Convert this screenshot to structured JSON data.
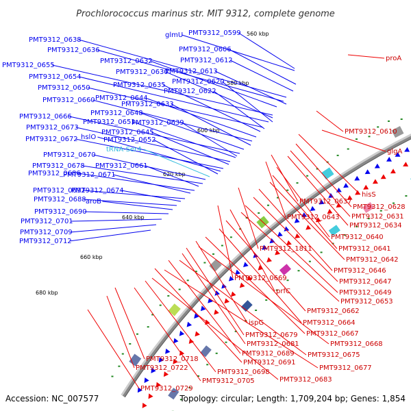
{
  "title": "Prochlorococcus marinus str. MIT 9312, complete genome",
  "accession": "Accession: NC_007577",
  "topology": "Topology: circular; Length: 1,709,204 bp; Genes: 1,854",
  "colors": {
    "reverse_strand": "#0000ee",
    "forward_strand": "#ee0000",
    "rna": "#33bbdd",
    "backbone": "#888888",
    "dots": "#228822"
  },
  "scale_ticks": [
    "560 kbp",
    "580 kbp",
    "600 kbp",
    "620 kbp",
    "640 kbp",
    "660 kbp",
    "680 kbp"
  ],
  "reverse_labels": [
    "PMT9312_0599",
    "glmU",
    "PMT9312_0606",
    "PMT9312_0638",
    "PMT9312_0636",
    "PMT9312_0612",
    "PMT9312_0632",
    "PMT9312_0655",
    "PMT9312_0613",
    "PMT9312_0630",
    "PMT9312_0654",
    "PMT9312_0620",
    "PMT9312_0650",
    "PMT9312_0635",
    "PMT9312_0622",
    "PMT9312_0644",
    "PMT9312_0660",
    "PMT9312_0633",
    "PMT9312_0648",
    "PMT9312_0666",
    "PMT9312_0651",
    "PMT9312_0639",
    "PMT9312_0673",
    "PMT9312_0645",
    "PMT9312_0672",
    "hslO",
    "PMT9312_0652",
    "tRNA-Ser4",
    "PMT9312_0670",
    "PMT9312_0678",
    "PMT9312_0661",
    "PMT9312_0686",
    "PMT9312_0671",
    "PMT9312_0692",
    "PMT9312_0674",
    "PMT9312_0688",
    "aroB",
    "PMT9312_0690",
    "PMT9312_0701",
    "PMT9312_0709",
    "PMT9312_0712"
  ],
  "forward_labels": [
    "proA",
    "PMT9312_0610",
    "glgA",
    "hisS",
    "PMT9312_0637",
    "PMT9312_0628",
    "PMT9312_0643",
    "PMT9312_0631",
    "PMT9312_0634",
    "PMT9312_0640",
    "PMT9312_1811",
    "PMT9312_0641",
    "PMT9312_0642",
    "PMT9312_0646",
    "PMT9312_0669",
    "PMT9312_0647",
    "prfC",
    "PMT9312_0649",
    "PMT9312_0653",
    "PMT9312_0662",
    "PMT9312_0664",
    "ispG",
    "PMT9312_0667",
    "PMT9312_0679",
    "PMT9312_0681",
    "PMT9312_0668",
    "PMT9312_0689",
    "PMT9312_0675",
    "PMT9312_0691",
    "PMT9312_0677",
    "PMT9312_0718",
    "PMT9312_0698",
    "PMT9312_0683",
    "PMT9312_0722",
    "PMT9312_0705",
    "PMT9312_0729"
  ]
}
